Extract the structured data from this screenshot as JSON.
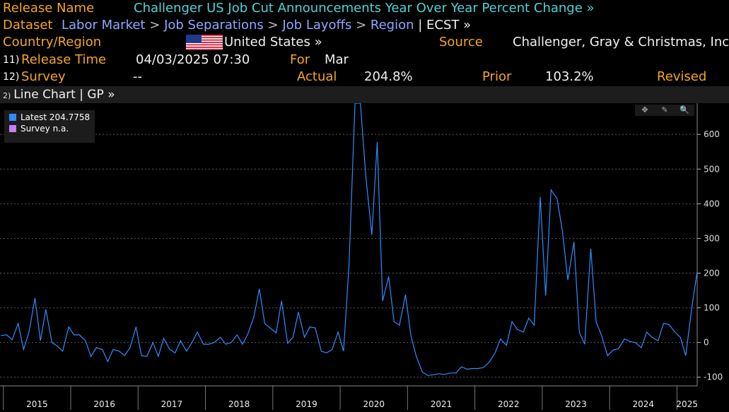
{
  "header": {
    "release_name_label": "Release Name",
    "release_name_value": "Challenger US Job Cut Announcements Year Over Year Percent Change »",
    "dataset_label": "Dataset",
    "breadcrumb": [
      "Labor Market",
      "Job Separations",
      "Job Layoffs",
      "Region"
    ],
    "breadcrumb_sep": ">",
    "ecst": "| ECST »",
    "country_label": "Country/Region",
    "country_value": "United States »",
    "source_label": "Source",
    "source_value": "Challenger, Gray & Christmas, Inc"
  },
  "row11": {
    "num": "11)",
    "label": "Release Time",
    "value": "04/03/2025 07:30",
    "for_label": "For",
    "for_value": "Mar"
  },
  "row12": {
    "num": "12)",
    "label": "Survey",
    "survey_value": "--",
    "actual_label": "Actual",
    "actual_value": "204.8%",
    "prior_label": "Prior",
    "prior_value": "103.2%",
    "revised_label": "Revised"
  },
  "chart_tab": {
    "num": "2)",
    "label": "Line Chart | GP »"
  },
  "legend": {
    "latest_label": "Latest",
    "latest_value": "204.7758",
    "survey_label": "Survey",
    "survey_value": "n.a."
  },
  "tools": [
    "✥",
    "✎",
    "🔍"
  ],
  "colors": {
    "orange": "#f5a623",
    "cyan": "#4fd3d9",
    "series": "#2f8cff",
    "survey": "#c77dff"
  },
  "chart_data": {
    "type": "line",
    "title": "Challenger US Job Cut Announcements YoY % Change",
    "ylim": [
      -125,
      690
    ],
    "yticks": [
      600,
      500,
      400,
      300,
      200,
      100,
      0,
      -100
    ],
    "x_start": 2014.95,
    "x_end": 2025.3,
    "xticks": [
      2015,
      2016,
      2017,
      2018,
      2019,
      2020,
      2021,
      2022,
      2023,
      2024,
      2025
    ],
    "series": [
      {
        "name": "Latest",
        "points": [
          [
            2014.96,
            20
          ],
          [
            2015.05,
            22
          ],
          [
            2015.13,
            8
          ],
          [
            2015.22,
            55
          ],
          [
            2015.3,
            -20
          ],
          [
            2015.38,
            30
          ],
          [
            2015.47,
            128
          ],
          [
            2015.55,
            5
          ],
          [
            2015.63,
            95
          ],
          [
            2015.72,
            0
          ],
          [
            2015.8,
            -10
          ],
          [
            2015.88,
            -25
          ],
          [
            2015.97,
            45
          ],
          [
            2016.05,
            22
          ],
          [
            2016.13,
            22
          ],
          [
            2016.22,
            5
          ],
          [
            2016.3,
            -40
          ],
          [
            2016.38,
            -15
          ],
          [
            2016.47,
            -20
          ],
          [
            2016.55,
            -55
          ],
          [
            2016.63,
            -20
          ],
          [
            2016.72,
            -25
          ],
          [
            2016.8,
            -38
          ],
          [
            2016.88,
            -15
          ],
          [
            2016.97,
            45
          ],
          [
            2017.05,
            -38
          ],
          [
            2017.13,
            -40
          ],
          [
            2017.22,
            0
          ],
          [
            2017.3,
            -40
          ],
          [
            2017.38,
            12
          ],
          [
            2017.47,
            -20
          ],
          [
            2017.55,
            -30
          ],
          [
            2017.63,
            5
          ],
          [
            2017.72,
            -25
          ],
          [
            2017.8,
            0
          ],
          [
            2017.88,
            30
          ],
          [
            2017.97,
            -5
          ],
          [
            2018.05,
            -5
          ],
          [
            2018.13,
            0
          ],
          [
            2018.22,
            15
          ],
          [
            2018.3,
            -5
          ],
          [
            2018.38,
            0
          ],
          [
            2018.47,
            22
          ],
          [
            2018.55,
            -5
          ],
          [
            2018.63,
            25
          ],
          [
            2018.72,
            75
          ],
          [
            2018.8,
            155
          ],
          [
            2018.88,
            55
          ],
          [
            2018.97,
            40
          ],
          [
            2019.05,
            28
          ],
          [
            2019.13,
            120
          ],
          [
            2019.22,
            -2
          ],
          [
            2019.3,
            15
          ],
          [
            2019.38,
            88
          ],
          [
            2019.47,
            15
          ],
          [
            2019.55,
            45
          ],
          [
            2019.63,
            42
          ],
          [
            2019.72,
            -25
          ],
          [
            2019.8,
            -30
          ],
          [
            2019.88,
            -20
          ],
          [
            2019.97,
            30
          ],
          [
            2020.05,
            -25
          ],
          [
            2020.13,
            220
          ],
          [
            2020.22,
            690
          ],
          [
            2020.3,
            690
          ],
          [
            2020.38,
            480
          ],
          [
            2020.47,
            310
          ],
          [
            2020.55,
            578
          ],
          [
            2020.63,
            120
          ],
          [
            2020.72,
            190
          ],
          [
            2020.8,
            60
          ],
          [
            2020.88,
            50
          ],
          [
            2020.97,
            138
          ],
          [
            2021.05,
            20
          ],
          [
            2021.13,
            -40
          ],
          [
            2021.22,
            -85
          ],
          [
            2021.3,
            -95
          ],
          [
            2021.38,
            -93
          ],
          [
            2021.47,
            -90
          ],
          [
            2021.55,
            -92
          ],
          [
            2021.63,
            -88
          ],
          [
            2021.72,
            -88
          ],
          [
            2021.8,
            -70
          ],
          [
            2021.88,
            -77
          ],
          [
            2021.97,
            -75
          ],
          [
            2022.05,
            -75
          ],
          [
            2022.13,
            -72
          ],
          [
            2022.22,
            -55
          ],
          [
            2022.3,
            -30
          ],
          [
            2022.38,
            10
          ],
          [
            2022.47,
            -8
          ],
          [
            2022.55,
            60
          ],
          [
            2022.63,
            38
          ],
          [
            2022.72,
            30
          ],
          [
            2022.8,
            70
          ],
          [
            2022.88,
            50
          ],
          [
            2022.97,
            420
          ],
          [
            2023.05,
            135
          ],
          [
            2023.13,
            440
          ],
          [
            2023.22,
            415
          ],
          [
            2023.3,
            320
          ],
          [
            2023.38,
            180
          ],
          [
            2023.47,
            290
          ],
          [
            2023.55,
            30
          ],
          [
            2023.63,
            -5
          ],
          [
            2023.72,
            270
          ],
          [
            2023.8,
            60
          ],
          [
            2023.88,
            20
          ],
          [
            2023.97,
            -38
          ],
          [
            2024.05,
            -22
          ],
          [
            2024.13,
            -18
          ],
          [
            2024.22,
            10
          ],
          [
            2024.3,
            3
          ],
          [
            2024.38,
            0
          ],
          [
            2024.47,
            -15
          ],
          [
            2024.55,
            30
          ],
          [
            2024.63,
            15
          ],
          [
            2024.72,
            5
          ],
          [
            2024.8,
            55
          ],
          [
            2024.88,
            52
          ],
          [
            2024.97,
            30
          ],
          [
            2025.05,
            15
          ],
          [
            2025.13,
            -38
          ],
          [
            2025.22,
            100
          ],
          [
            2025.3,
            205
          ]
        ]
      }
    ]
  }
}
